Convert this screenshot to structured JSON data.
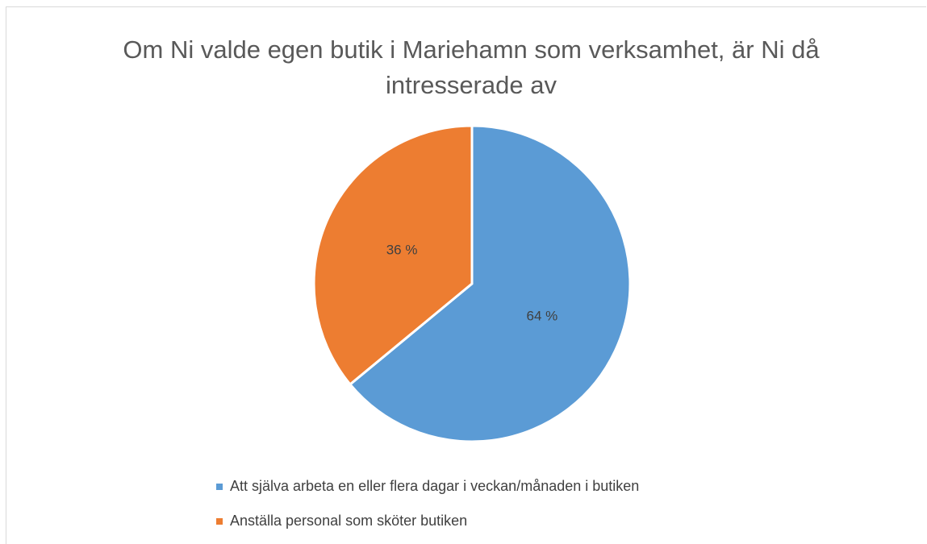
{
  "chart_data": {
    "type": "pie",
    "title": "Om Ni valde egen butik i Mariehamn som verksamhet, är Ni då intresserade av",
    "categories": [
      "Att själva arbeta en eller flera dagar i veckan/månaden i butiken",
      "Anställa personal som sköter butiken"
    ],
    "values": [
      64,
      36
    ],
    "value_labels": [
      "64 %",
      "36 %"
    ],
    "colors": [
      "#5b9bd5",
      "#ed7d31"
    ],
    "legend": "bottom"
  }
}
